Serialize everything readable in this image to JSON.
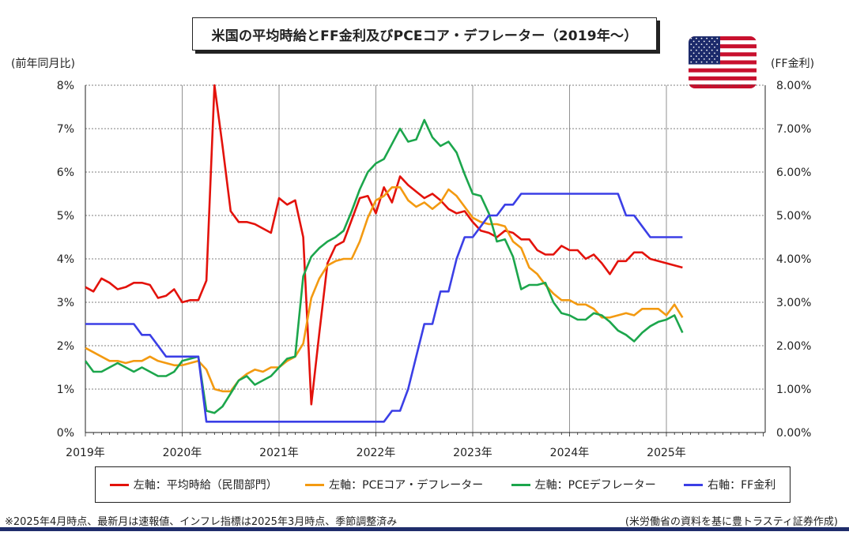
{
  "title": "米国の平均時給とFF金利及びPCEコア・デフレーター（2019年～）",
  "left_axis_unit": "(前年同月比)",
  "right_axis_unit": "(FF金利)",
  "footnote_left": "※2025年4月時点、最新月は速報値、インフレ指標は2025年3月時点、季節調整済み",
  "footnote_right": "(米労働省の資料を基に豊トラスティ証券作成)",
  "flag_icon": "us-flag-icon",
  "chart_data": {
    "type": "line",
    "x_start": "2019-01",
    "x_labels": [
      "2019年",
      "2020年",
      "2021年",
      "2022年",
      "2023年",
      "2024年",
      "2025年"
    ],
    "y_left_ticks": [
      "0%",
      "1%",
      "2%",
      "3%",
      "4%",
      "5%",
      "6%",
      "7%",
      "8%"
    ],
    "y_right_ticks": [
      "0.00%",
      "1.00%",
      "2.00%",
      "3.00%",
      "4.00%",
      "5.00%",
      "6.00%",
      "7.00%",
      "8.00%"
    ],
    "ylim_left": [
      0,
      8
    ],
    "ylim_right": [
      0,
      8
    ],
    "grid": true,
    "legend_position": "bottom",
    "series": [
      {
        "name": "左軸：平均時給（民間部門）",
        "axis": "left",
        "color": "#e3120b",
        "values": [
          3.35,
          3.25,
          3.55,
          3.45,
          3.3,
          3.35,
          3.45,
          3.45,
          3.4,
          3.1,
          3.15,
          3.3,
          3.0,
          3.05,
          3.05,
          3.5,
          8.0,
          6.6,
          5.1,
          4.85,
          4.85,
          4.8,
          4.7,
          4.6,
          5.4,
          5.25,
          5.35,
          4.5,
          0.65,
          2.3,
          3.9,
          4.3,
          4.4,
          4.9,
          5.4,
          5.45,
          5.05,
          5.65,
          5.3,
          5.9,
          5.7,
          5.55,
          5.4,
          5.5,
          5.35,
          5.15,
          5.05,
          5.1,
          4.85,
          4.65,
          4.6,
          4.5,
          4.65,
          4.6,
          4.45,
          4.45,
          4.2,
          4.1,
          4.1,
          4.3,
          4.2,
          4.2,
          4.0,
          4.1,
          3.9,
          3.65,
          3.95,
          3.95,
          4.15,
          4.15,
          4.0,
          3.95,
          3.9,
          3.85,
          3.8
        ]
      },
      {
        "name": "左軸：PCEコア・デフレーター",
        "axis": "left",
        "color": "#f39a11",
        "values": [
          1.95,
          1.85,
          1.75,
          1.65,
          1.65,
          1.6,
          1.65,
          1.65,
          1.75,
          1.65,
          1.6,
          1.55,
          1.55,
          1.6,
          1.65,
          1.45,
          1.0,
          0.95,
          0.95,
          1.2,
          1.35,
          1.45,
          1.4,
          1.5,
          1.5,
          1.65,
          1.75,
          2.05,
          3.1,
          3.55,
          3.85,
          3.95,
          4.0,
          4.0,
          4.4,
          4.95,
          5.35,
          5.45,
          5.65,
          5.65,
          5.35,
          5.2,
          5.3,
          5.15,
          5.3,
          5.6,
          5.45,
          5.2,
          4.95,
          4.85,
          4.8,
          4.8,
          4.75,
          4.4,
          4.25,
          3.8,
          3.65,
          3.4,
          3.2,
          3.05,
          3.05,
          2.95,
          2.95,
          2.85,
          2.65,
          2.65,
          2.7,
          2.75,
          2.7,
          2.85,
          2.85,
          2.85,
          2.7,
          2.95,
          2.65
        ]
      },
      {
        "name": "左軸：PCEデフレーター",
        "axis": "left",
        "color": "#1ca64c",
        "values": [
          1.65,
          1.4,
          1.4,
          1.5,
          1.6,
          1.5,
          1.4,
          1.5,
          1.4,
          1.3,
          1.3,
          1.4,
          1.65,
          1.7,
          1.75,
          0.5,
          0.45,
          0.6,
          0.9,
          1.2,
          1.3,
          1.1,
          1.2,
          1.3,
          1.5,
          1.7,
          1.75,
          3.6,
          4.05,
          4.25,
          4.4,
          4.5,
          4.65,
          5.1,
          5.6,
          6.0,
          6.2,
          6.3,
          6.65,
          7.0,
          6.7,
          6.75,
          7.2,
          6.8,
          6.6,
          6.7,
          6.45,
          5.95,
          5.5,
          5.45,
          5.05,
          4.4,
          4.45,
          4.05,
          3.3,
          3.4,
          3.4,
          3.45,
          3.0,
          2.75,
          2.7,
          2.6,
          2.6,
          2.75,
          2.7,
          2.55,
          2.35,
          2.25,
          2.1,
          2.3,
          2.45,
          2.55,
          2.6,
          2.7,
          2.3
        ]
      },
      {
        "name": "右軸：FF金利",
        "axis": "right",
        "color": "#3b3fe6",
        "values": [
          2.5,
          2.5,
          2.5,
          2.5,
          2.5,
          2.5,
          2.5,
          2.25,
          2.25,
          2.0,
          1.75,
          1.75,
          1.75,
          1.75,
          1.75,
          0.25,
          0.25,
          0.25,
          0.25,
          0.25,
          0.25,
          0.25,
          0.25,
          0.25,
          0.25,
          0.25,
          0.25,
          0.25,
          0.25,
          0.25,
          0.25,
          0.25,
          0.25,
          0.25,
          0.25,
          0.25,
          0.25,
          0.25,
          0.5,
          0.5,
          1.0,
          1.75,
          2.5,
          2.5,
          3.25,
          3.25,
          4.0,
          4.5,
          4.5,
          4.75,
          5.0,
          5.0,
          5.25,
          5.25,
          5.5,
          5.5,
          5.5,
          5.5,
          5.5,
          5.5,
          5.5,
          5.5,
          5.5,
          5.5,
          5.5,
          5.5,
          5.5,
          5.0,
          5.0,
          4.75,
          4.5,
          4.5,
          4.5,
          4.5,
          4.5
        ]
      }
    ]
  }
}
